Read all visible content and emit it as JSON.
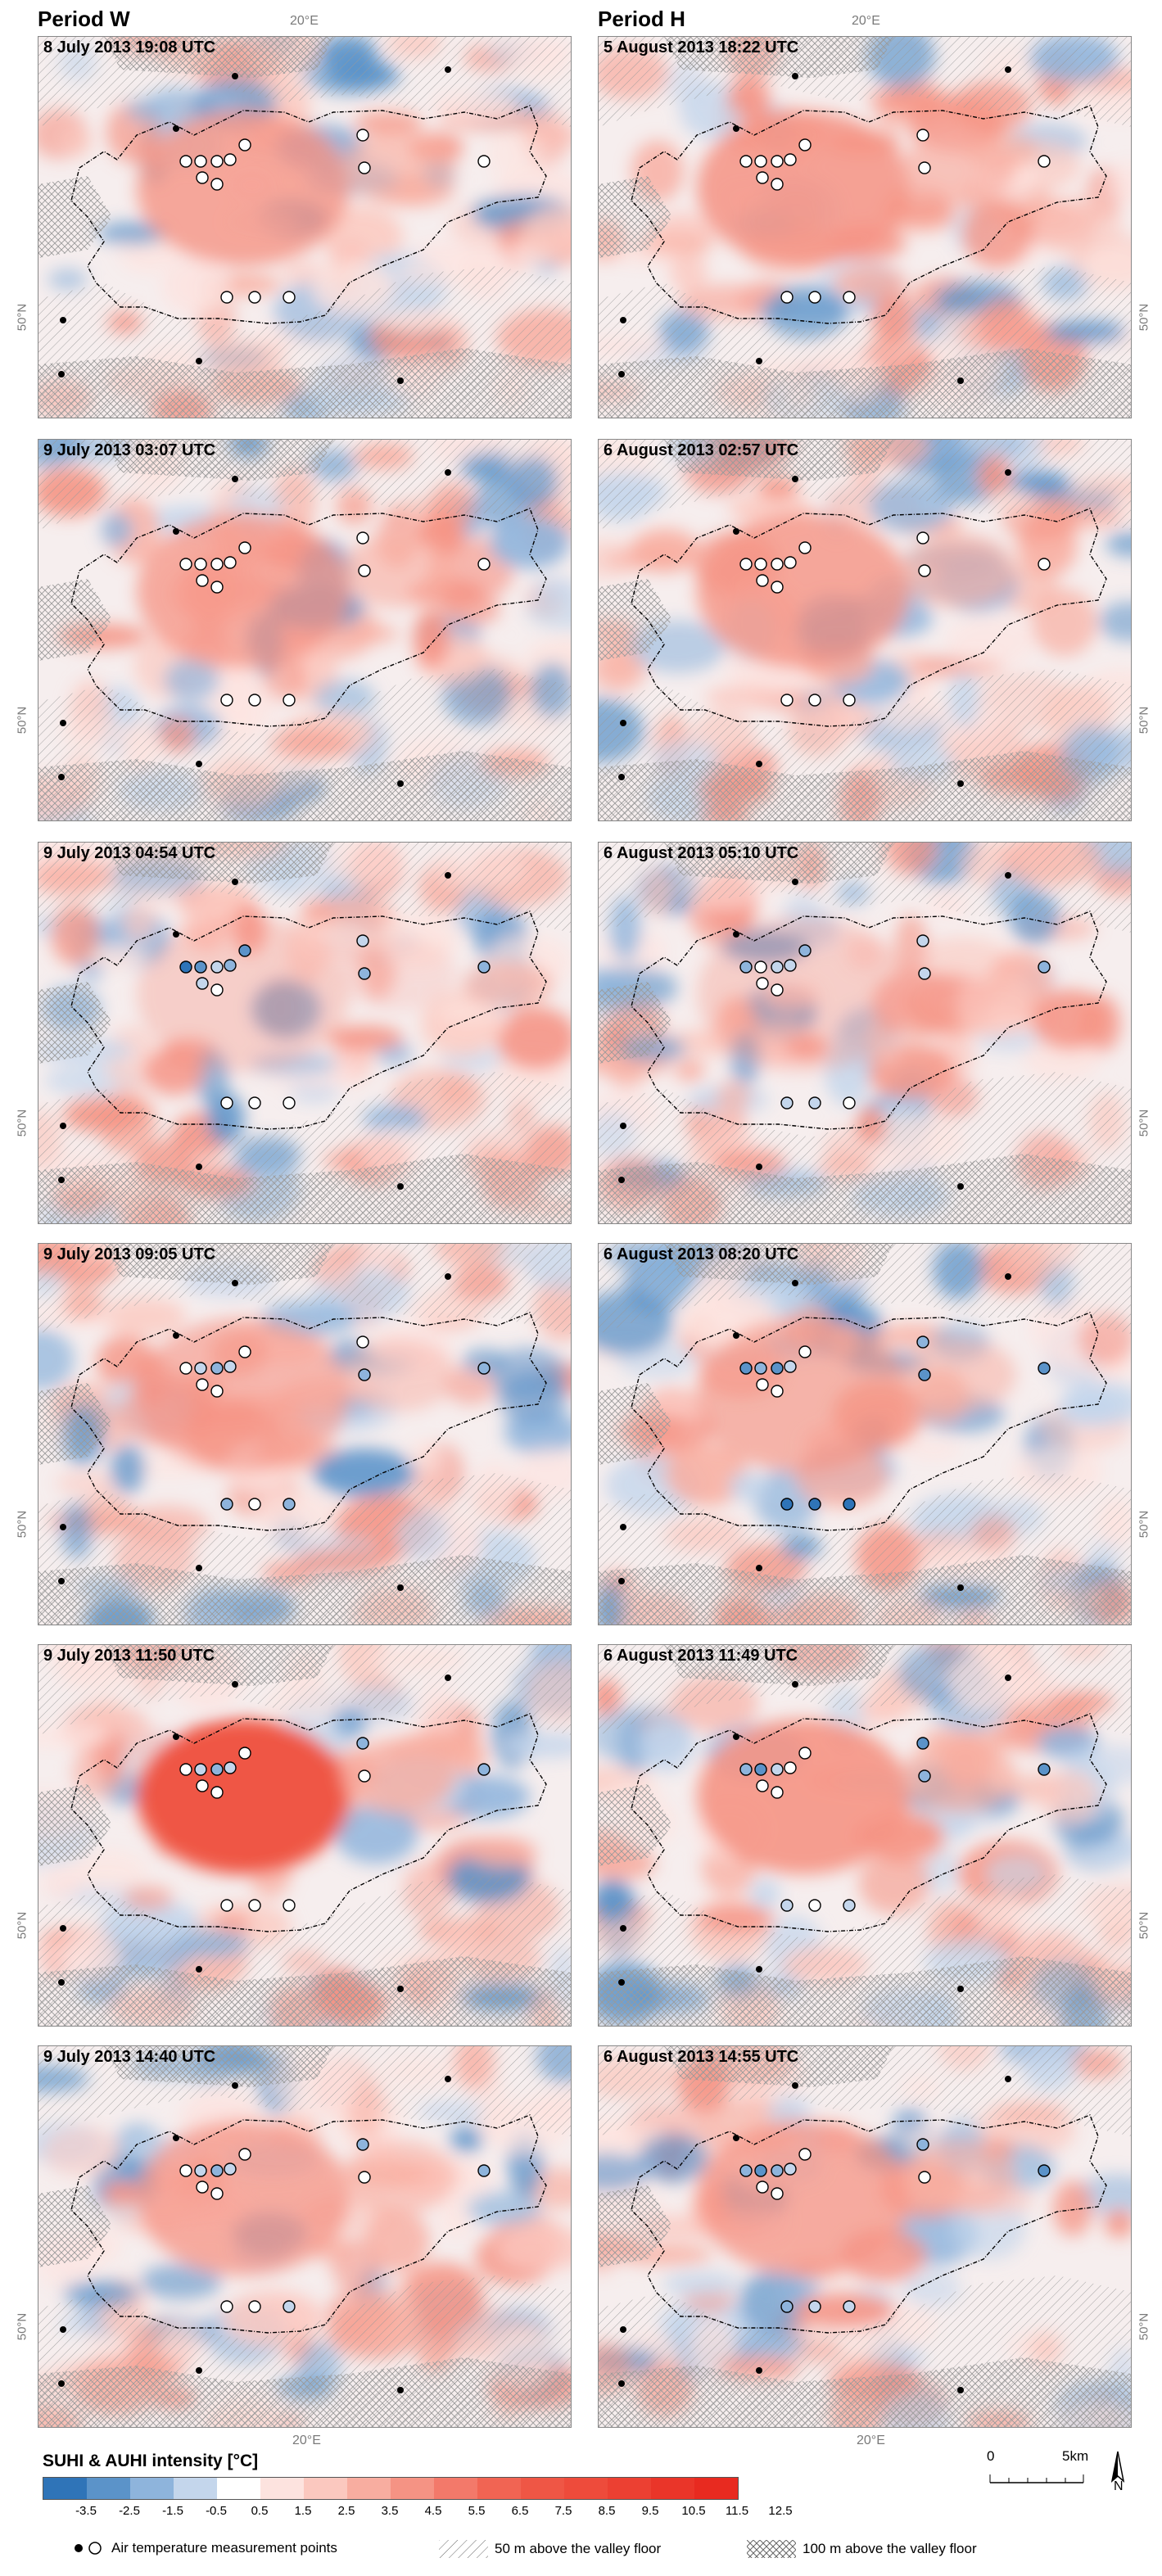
{
  "columns": [
    {
      "title": "Period W"
    },
    {
      "title": "Period H"
    }
  ],
  "longitude_label": "20°E",
  "latitude_label": "50°N",
  "panels": [
    {
      "label": "8 July 2013 19:08 UTC"
    },
    {
      "label": "5 August 2013 18:22 UTC"
    },
    {
      "label": "9 July 2013 03:07 UTC"
    },
    {
      "label": "6 August 2013 02:57 UTC"
    },
    {
      "label": "9 July 2013 04:54 UTC"
    },
    {
      "label": "6 August 2013 05:10 UTC"
    },
    {
      "label": "9 July 2013 09:05 UTC"
    },
    {
      "label": "6 August 2013 08:20 UTC"
    },
    {
      "label": "9 July 2013 11:50 UTC"
    },
    {
      "label": "6 August 2013 11:49 UTC"
    },
    {
      "label": "9 July 2013 14:40 UTC"
    },
    {
      "label": "6 August 2013 14:55 UTC"
    }
  ],
  "legend": {
    "title": "SUHI & AUHI intensity [°C]",
    "ticks": [
      "-3.5",
      "-2.5",
      "-1.5",
      "-0.5",
      "0.5",
      "1.5",
      "2.5",
      "3.5",
      "4.5",
      "5.5",
      "6.5",
      "7.5",
      "8.5",
      "9.5",
      "10.5",
      "11.5",
      "12.5"
    ],
    "colors": [
      "#2f74b8",
      "#5b93c9",
      "#8eb4dc",
      "#c4d6ec",
      "#ffffff",
      "#fde3df",
      "#fbc8bf",
      "#f8ada0",
      "#f59384",
      "#f3796a",
      "#f16453",
      "#ef5645",
      "#ee4b3b",
      "#ec4032",
      "#ea3529",
      "#e82a20"
    ],
    "points_label": "Air temperature measurement points",
    "hatch_50_label": "50 m above the valley floor",
    "hatch_100_label": "100 m above the valley floor"
  },
  "scale_bar": {
    "zero": "0",
    "end": "5km"
  },
  "north_label": "N"
}
